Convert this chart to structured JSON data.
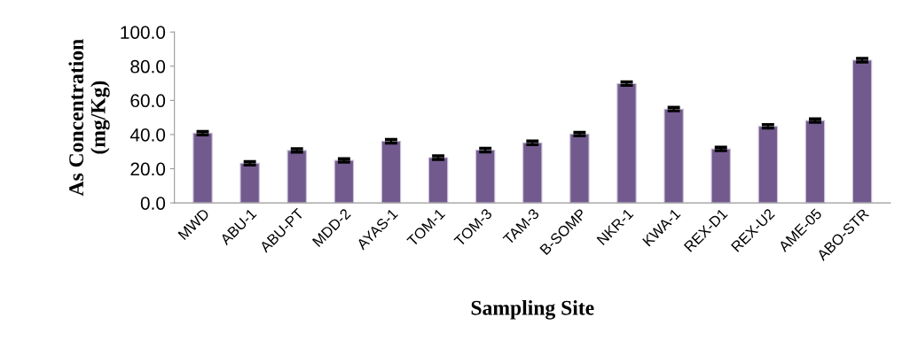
{
  "chart_data": {
    "type": "bar",
    "xlabel": "Sampling Site",
    "ylabel": "As Concentration\n(mg/Kg)",
    "categories": [
      "MWD",
      "ABU-1",
      "ABU-PT",
      "MDD-2",
      "AYAS-1",
      "TOM-1",
      "TOM-3",
      "TAM-3",
      "B-SOMP",
      "NKR-1",
      "KWA-1",
      "REX-D1",
      "REX-U2",
      "AME-05",
      "ABO-STR"
    ],
    "values": [
      40.8,
      23.2,
      30.7,
      24.9,
      36.1,
      26.5,
      30.9,
      35.2,
      40.3,
      69.8,
      54.9,
      31.6,
      44.8,
      48.2,
      83.5
    ],
    "errors": [
      1,
      1,
      1,
      1,
      1,
      1,
      1,
      1,
      1,
      1,
      1,
      1,
      1,
      1,
      1
    ],
    "color": "#725a8e",
    "ylim": [
      0,
      100
    ],
    "yticks": [
      {
        "value": 0,
        "label": "0.0"
      },
      {
        "value": 20,
        "label": "20.0"
      },
      {
        "value": 40,
        "label": "40.0"
      },
      {
        "value": 60,
        "label": "60.0"
      },
      {
        "value": 80,
        "label": "80.0"
      },
      {
        "value": 100,
        "label": "100.0"
      }
    ],
    "grid": false,
    "legend": false
  }
}
